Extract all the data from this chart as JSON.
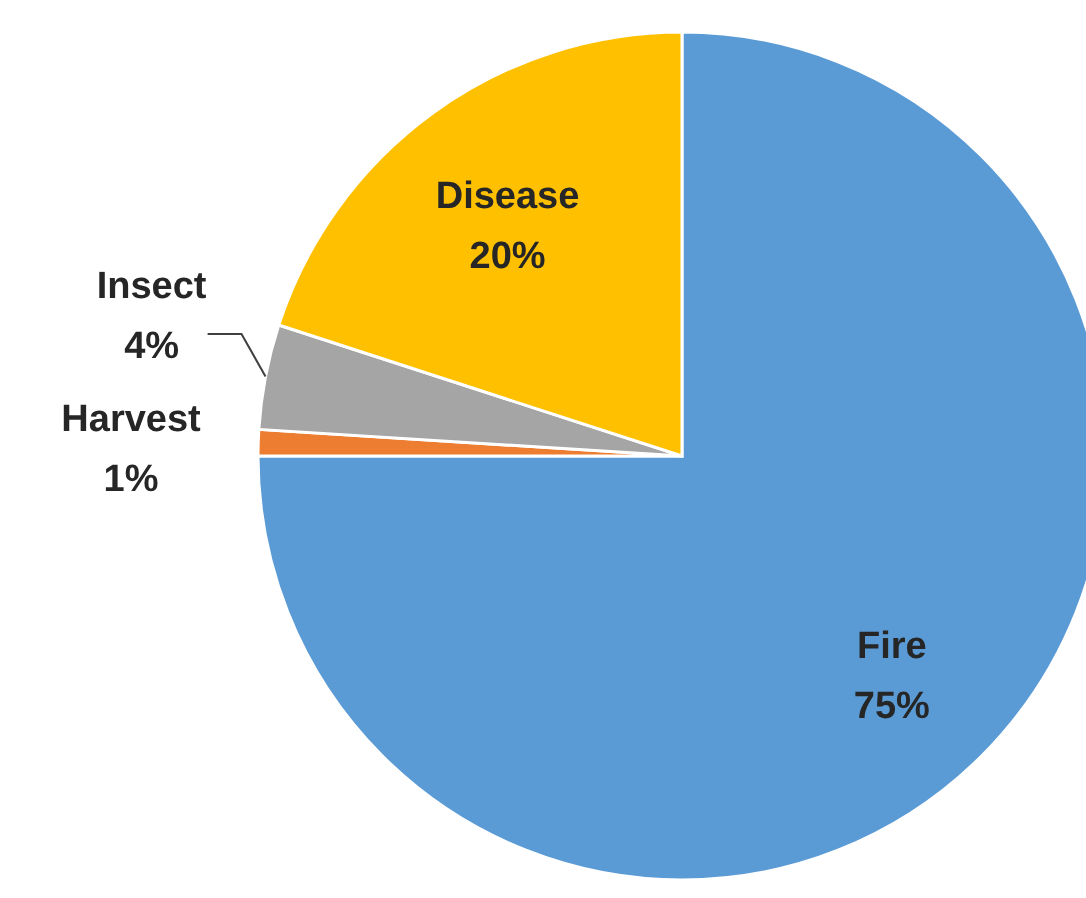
{
  "chart_data": {
    "type": "pie",
    "categories": [
      "Fire",
      "Harvest",
      "Insect",
      "Disease"
    ],
    "values": [
      75,
      1,
      4,
      20
    ],
    "colors": [
      "#5b9bd5",
      "#ed7d31",
      "#a5a5a5",
      "#ffc000"
    ],
    "value_labels": [
      "75%",
      "1%",
      "4%",
      "20%"
    ]
  }
}
